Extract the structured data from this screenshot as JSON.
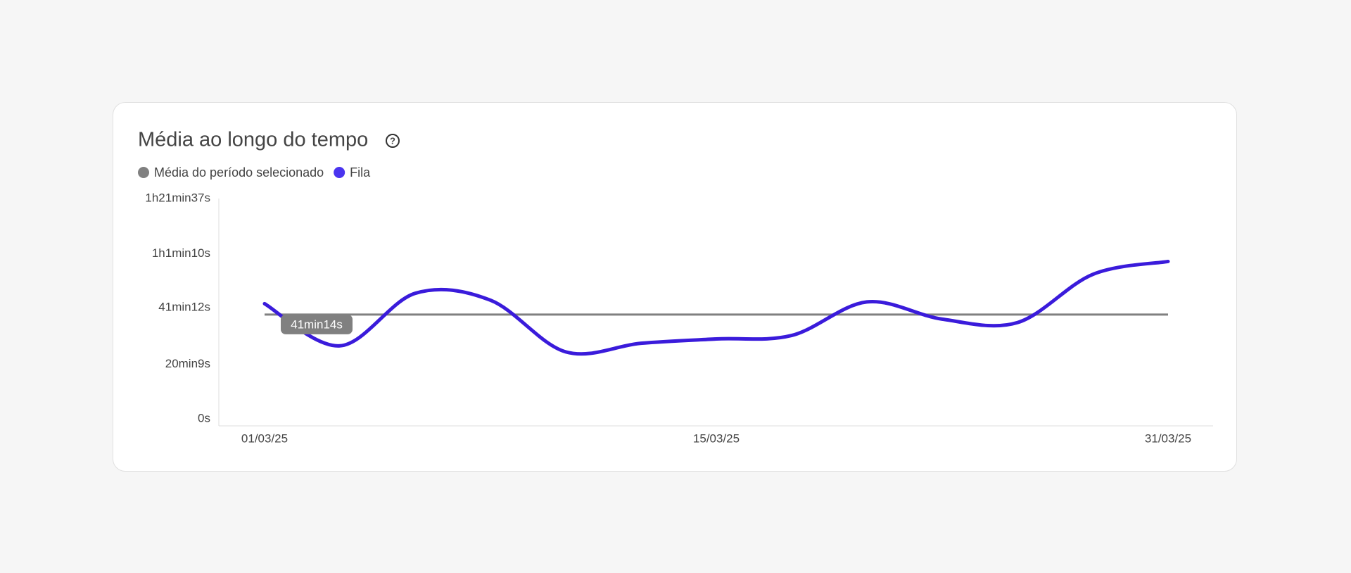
{
  "chart_data": {
    "type": "line",
    "title": "Média ao longo do tempo",
    "categories": [
      "01/03/25",
      null,
      null,
      null,
      null,
      null,
      "15/03/25",
      null,
      null,
      null,
      null,
      null,
      "31/03/25"
    ],
    "average": {
      "name": "Média do período selecionado",
      "color": "#808080",
      "value": 2474,
      "value_label": "41min14s"
    },
    "series": [
      {
        "name": "Fila",
        "color": "#3a1bdb",
        "values": [
          2716,
          1779,
          2946,
          2793,
          1645,
          1836,
          1932,
          2009,
          2755,
          2372,
          2296,
          3367,
          3654
        ]
      }
    ],
    "ylim": [
      0,
      4897
    ],
    "yticks": [
      {
        "value": 0,
        "label": "0s"
      },
      {
        "value": 1209,
        "label": "20min9s"
      },
      {
        "value": 2472,
        "label": "41min12s"
      },
      {
        "value": 3670,
        "label": "1h1min10s"
      },
      {
        "value": 4897,
        "label": "1h21min37s"
      }
    ],
    "grid": false
  }
}
